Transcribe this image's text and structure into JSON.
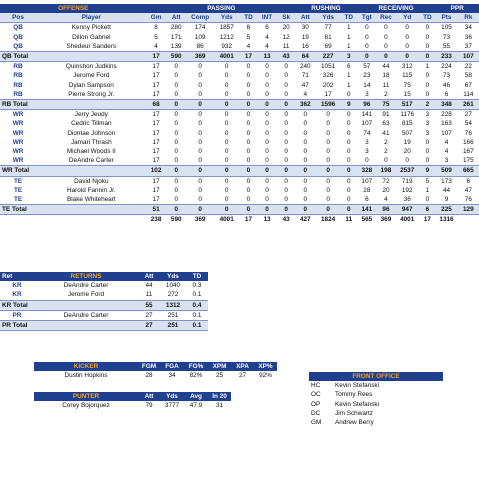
{
  "offense": {
    "groups": [
      "OFFENSE",
      "PASSING",
      "RUSHING",
      "RECEIVING",
      "PPR"
    ],
    "cols": [
      "Pos",
      "Player",
      "Gm",
      "Att",
      "Comp",
      "Yds",
      "TD",
      "INT",
      "Sk",
      "Att",
      "Yds",
      "TD",
      "Tgt",
      "Rec",
      "Yd",
      "TD",
      "Pts",
      "Rk"
    ],
    "rows": [
      {
        "k": "p",
        "v": [
          "QB",
          "Kenny Pickett",
          "8",
          "280",
          "174",
          "1857",
          "8",
          "6",
          "20",
          "30",
          "77",
          "1",
          "0",
          "0",
          "0",
          "0",
          "105",
          "34"
        ]
      },
      {
        "k": "p",
        "v": [
          "QB",
          "Dillon Gabriel",
          "5",
          "171",
          "109",
          "1212",
          "5",
          "4",
          "12",
          "19",
          "81",
          "1",
          "0",
          "0",
          "0",
          "0",
          "73",
          "36"
        ]
      },
      {
        "k": "p",
        "v": [
          "QB",
          "Shedeur Sanders",
          "4",
          "139",
          "86",
          "932",
          "4",
          "4",
          "11",
          "16",
          "69",
          "1",
          "0",
          "0",
          "0",
          "0",
          "55",
          "37"
        ]
      },
      {
        "k": "t",
        "v": [
          "QB Total",
          "",
          "17",
          "590",
          "369",
          "4001",
          "17",
          "13",
          "43",
          "64",
          "227",
          "3",
          "0",
          "0",
          "0",
          "0",
          "233",
          "107"
        ]
      },
      {
        "k": "p",
        "v": [
          "RB",
          "Quinshon Judkins",
          "17",
          "0",
          "0",
          "0",
          "0",
          "0",
          "0",
          "240",
          "1051",
          "6",
          "57",
          "44",
          "312",
          "1",
          "224",
          "22"
        ]
      },
      {
        "k": "p",
        "v": [
          "RB",
          "Jerome Ford",
          "17",
          "0",
          "0",
          "0",
          "0",
          "0",
          "0",
          "71",
          "326",
          "1",
          "23",
          "18",
          "115",
          "0",
          "73",
          "58"
        ]
      },
      {
        "k": "p",
        "v": [
          "RB",
          "Dylan Sampson",
          "17",
          "0",
          "0",
          "0",
          "0",
          "0",
          "0",
          "47",
          "202",
          "1",
          "14",
          "11",
          "75",
          "0",
          "46",
          "67"
        ]
      },
      {
        "k": "p",
        "v": [
          "RB",
          "Pierre Strong Jr.",
          "17",
          "0",
          "0",
          "0",
          "0",
          "0",
          "0",
          "4",
          "17",
          "0",
          "3",
          "2",
          "15",
          "0",
          "6",
          "114"
        ]
      },
      {
        "k": "t",
        "v": [
          "RB Total",
          "",
          "68",
          "0",
          "0",
          "0",
          "0",
          "0",
          "0",
          "362",
          "1596",
          "9",
          "96",
          "75",
          "517",
          "2",
          "348",
          "261"
        ]
      },
      {
        "k": "p",
        "v": [
          "WR",
          "Jerry Jeudy",
          "17",
          "0",
          "0",
          "0",
          "0",
          "0",
          "0",
          "0",
          "0",
          "0",
          "141",
          "91",
          "1176",
          "3",
          "228",
          "27"
        ]
      },
      {
        "k": "p",
        "v": [
          "WR",
          "Cedric Tillman",
          "17",
          "0",
          "0",
          "0",
          "0",
          "0",
          "0",
          "0",
          "0",
          "0",
          "107",
          "63",
          "815",
          "3",
          "163",
          "54"
        ]
      },
      {
        "k": "p",
        "v": [
          "WR",
          "Diontae Johnson",
          "17",
          "0",
          "0",
          "0",
          "0",
          "0",
          "0",
          "0",
          "0",
          "0",
          "74",
          "41",
          "507",
          "3",
          "107",
          "76"
        ]
      },
      {
        "k": "p",
        "v": [
          "WR",
          "Jamari Thrash",
          "17",
          "0",
          "0",
          "0",
          "0",
          "0",
          "0",
          "0",
          "0",
          "0",
          "3",
          "2",
          "19",
          "0",
          "4",
          "166"
        ]
      },
      {
        "k": "p",
        "v": [
          "WR",
          "Michael Woods II",
          "17",
          "0",
          "0",
          "0",
          "0",
          "0",
          "0",
          "0",
          "0",
          "0",
          "3",
          "2",
          "20",
          "0",
          "4",
          "167"
        ]
      },
      {
        "k": "p",
        "v": [
          "WR",
          "DeAndre Carter",
          "17",
          "0",
          "0",
          "0",
          "0",
          "0",
          "0",
          "0",
          "0",
          "0",
          "0",
          "0",
          "0",
          "0",
          "3",
          "175"
        ]
      },
      {
        "k": "t",
        "v": [
          "WR Total",
          "",
          "102",
          "0",
          "0",
          "0",
          "0",
          "0",
          "0",
          "0",
          "0",
          "0",
          "328",
          "198",
          "2537",
          "9",
          "509",
          "665"
        ]
      },
      {
        "k": "p",
        "v": [
          "TE",
          "David Njoku",
          "17",
          "0",
          "0",
          "0",
          "0",
          "0",
          "0",
          "0",
          "0",
          "0",
          "107",
          "72",
          "719",
          "5",
          "173",
          "6"
        ]
      },
      {
        "k": "p",
        "v": [
          "TE",
          "Harold Fannin Jr.",
          "17",
          "0",
          "0",
          "0",
          "0",
          "0",
          "0",
          "0",
          "0",
          "0",
          "28",
          "20",
          "192",
          "1",
          "44",
          "47"
        ]
      },
      {
        "k": "p",
        "v": [
          "TE",
          "Blake Whiteheart",
          "17",
          "0",
          "0",
          "0",
          "0",
          "0",
          "0",
          "0",
          "0",
          "0",
          "6",
          "4",
          "36",
          "0",
          "9",
          "76"
        ]
      },
      {
        "k": "t",
        "v": [
          "TE Total",
          "",
          "51",
          "0",
          "0",
          "0",
          "0",
          "0",
          "0",
          "0",
          "0",
          "0",
          "141",
          "96",
          "947",
          "6",
          "225",
          "129"
        ]
      },
      {
        "k": "g",
        "v": [
          "",
          "",
          "238",
          "590",
          "369",
          "4001",
          "17",
          "13",
          "43",
          "427",
          "1824",
          "11",
          "565",
          "369",
          "4001",
          "17",
          "1316",
          ""
        ]
      }
    ]
  },
  "returns": {
    "title": "RETURNS",
    "cols": [
      "Ret",
      "",
      "Att",
      "Yds",
      "TD"
    ],
    "rows": [
      {
        "k": "p",
        "v": [
          "KR",
          "DeAndre Carter",
          "44",
          "1040",
          "0.3"
        ]
      },
      {
        "k": "p",
        "v": [
          "KR",
          "Jerome Ford",
          "11",
          "272",
          "0.1"
        ]
      },
      {
        "k": "t",
        "v": [
          "KR Total",
          "",
          "55",
          "1312",
          "0.4"
        ]
      },
      {
        "k": "p",
        "v": [
          "PR",
          "DeAndre Carter",
          "27",
          "251",
          "0.1"
        ]
      },
      {
        "k": "t",
        "v": [
          "PR Total",
          "",
          "27",
          "251",
          "0.1"
        ]
      }
    ]
  },
  "kicker": {
    "title": "KICKER",
    "cols": [
      "FGM",
      "FGA",
      "FG%",
      "XPM",
      "XPA",
      "XP%"
    ],
    "player": "Dustin Hopkins",
    "values": [
      "28",
      "34",
      "82%",
      "25",
      "27",
      "92%"
    ]
  },
  "punter": {
    "title": "PUNTER",
    "cols": [
      "Att",
      "Yds",
      "Avg",
      "In 20"
    ],
    "player": "Corey Bojorquez",
    "values": [
      "79",
      "3777",
      "47.9",
      "31"
    ]
  },
  "front_office": {
    "title": "FRONT OFFICE",
    "rows": [
      {
        "role": "HC",
        "name": "Kevin Stefanski"
      },
      {
        "role": "OC",
        "name": "Tommy Rees"
      },
      {
        "role": "OP",
        "name": "Kevin Stefanski"
      },
      {
        "role": "DC",
        "name": "Jim Schwartz"
      },
      {
        "role": "GM",
        "name": "Andrew Berry"
      }
    ]
  }
}
